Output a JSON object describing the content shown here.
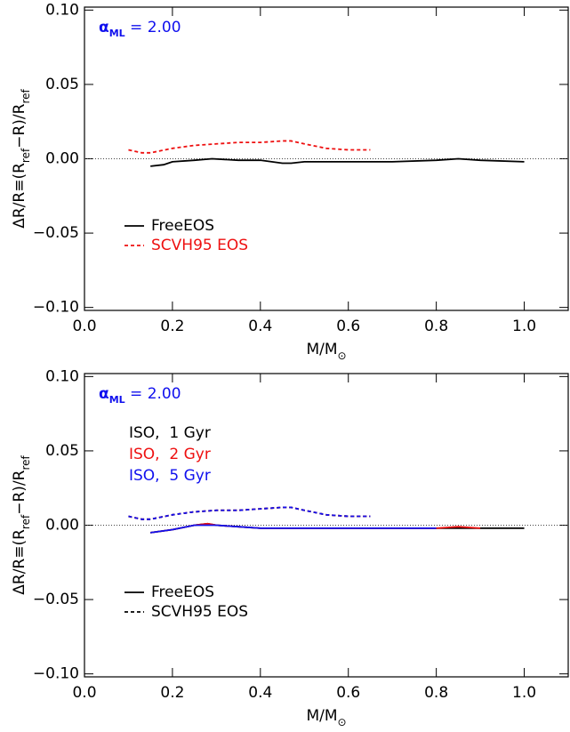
{
  "chart_data": [
    {
      "type": "line",
      "annotation": {
        "symbol": "α",
        "subscript": "ML",
        "text": " = 2.00",
        "color": "#1010ee"
      },
      "x_label": [
        {
          "text": "M/M"
        },
        {
          "text": "⊙",
          "sub": true
        }
      ],
      "y_label": [
        {
          "text": "ΔR/R≡(R"
        },
        {
          "text": "ref",
          "sub": true
        },
        {
          "text": "−R)/R"
        },
        {
          "text": "ref",
          "sub": true
        }
      ],
      "xlim": [
        0,
        1.1
      ],
      "ylim": [
        -0.102,
        0.102
      ],
      "xticks": [
        {
          "value": 0,
          "label": "0.0"
        },
        {
          "value": 0.2,
          "label": "0.2"
        },
        {
          "value": 0.4,
          "label": "0.4"
        },
        {
          "value": 0.6,
          "label": "0.6"
        },
        {
          "value": 0.8,
          "label": "0.8"
        },
        {
          "value": 1,
          "label": "1.0"
        }
      ],
      "yticks": [
        {
          "value": -0.1,
          "label": "−0.10"
        },
        {
          "value": -0.05,
          "label": "−0.05"
        },
        {
          "value": 0,
          "label": "0.00"
        },
        {
          "value": 0.05,
          "label": "0.05"
        },
        {
          "value": 0.1,
          "label": "0.10"
        }
      ],
      "zero_line": true,
      "legend": [
        {
          "name": "FreeEOS",
          "color": "#000000",
          "dashed": false
        },
        {
          "name": "SCVH95 EOS",
          "color": "#ee1010",
          "dashed": true
        }
      ],
      "series": [
        {
          "legend": 0,
          "x": [
            0.15,
            0.18,
            0.2,
            0.25,
            0.29,
            0.35,
            0.4,
            0.45,
            0.47,
            0.5,
            0.6,
            0.7,
            0.8,
            0.85,
            0.9,
            1.0
          ],
          "values": [
            -0.005,
            -0.004,
            -0.002,
            -0.001,
            0.0,
            -0.001,
            -0.001,
            -0.003,
            -0.003,
            -0.002,
            -0.002,
            -0.002,
            -0.001,
            0.0,
            -0.001,
            -0.002
          ]
        },
        {
          "legend": 1,
          "x": [
            0.1,
            0.13,
            0.15,
            0.2,
            0.25,
            0.3,
            0.35,
            0.4,
            0.45,
            0.47,
            0.5,
            0.55,
            0.6,
            0.65
          ],
          "values": [
            0.006,
            0.004,
            0.004,
            0.007,
            0.009,
            0.01,
            0.011,
            0.011,
            0.012,
            0.012,
            0.01,
            0.007,
            0.006,
            0.006
          ]
        }
      ]
    },
    {
      "type": "line",
      "annotation": {
        "symbol": "α",
        "subscript": "ML",
        "text": " = 2.00",
        "color": "#1010ee"
      },
      "x_label": [
        {
          "text": "M/M"
        },
        {
          "text": "⊙",
          "sub": true
        }
      ],
      "y_label": [
        {
          "text": "ΔR/R≡(R"
        },
        {
          "text": "ref",
          "sub": true
        },
        {
          "text": "−R)/R"
        },
        {
          "text": "ref",
          "sub": true
        }
      ],
      "xlim": [
        0,
        1.1
      ],
      "ylim": [
        -0.102,
        0.102
      ],
      "xticks": [
        {
          "value": 0,
          "label": "0.0"
        },
        {
          "value": 0.2,
          "label": "0.2"
        },
        {
          "value": 0.4,
          "label": "0.4"
        },
        {
          "value": 0.6,
          "label": "0.6"
        },
        {
          "value": 0.8,
          "label": "0.8"
        },
        {
          "value": 1,
          "label": "1.0"
        }
      ],
      "yticks": [
        {
          "value": -0.1,
          "label": "−0.10"
        },
        {
          "value": -0.05,
          "label": "−0.05"
        },
        {
          "value": 0,
          "label": "0.00"
        },
        {
          "value": 0.05,
          "label": "0.05"
        },
        {
          "value": 0.1,
          "label": "0.10"
        }
      ],
      "zero_line": true,
      "legend": [
        {
          "name": "FreeEOS",
          "color": "#000000",
          "dashed": false
        },
        {
          "name": "SCVH95 EOS",
          "color": "#000000",
          "dashed": true
        }
      ],
      "age_legend": [
        {
          "name": "ISO,  1 Gyr",
          "color": "#000000"
        },
        {
          "name": "ISO,  2 Gyr",
          "color": "#ee1010"
        },
        {
          "name": "ISO,  5 Gyr",
          "color": "#1010ee"
        }
      ],
      "series": [
        {
          "legend": 0,
          "age": 0,
          "x": [
            0.15,
            0.2,
            0.25,
            0.28,
            0.3,
            0.35,
            0.4,
            0.5,
            0.6,
            0.7,
            0.8,
            0.9,
            1.0
          ],
          "values": [
            -0.005,
            -0.003,
            0.0,
            0.001,
            0.0,
            -0.001,
            -0.002,
            -0.002,
            -0.002,
            -0.002,
            -0.002,
            -0.002,
            -0.002
          ]
        },
        {
          "legend": 0,
          "age": 1,
          "x": [
            0.15,
            0.2,
            0.25,
            0.28,
            0.3,
            0.35,
            0.4,
            0.5,
            0.6,
            0.7,
            0.8,
            0.85,
            0.9
          ],
          "values": [
            -0.005,
            -0.003,
            0.0,
            0.001,
            0.0,
            -0.001,
            -0.002,
            -0.002,
            -0.002,
            -0.002,
            -0.002,
            -0.001,
            -0.002
          ]
        },
        {
          "legend": 0,
          "age": 2,
          "x": [
            0.15,
            0.2,
            0.25,
            0.28,
            0.3,
            0.35,
            0.4,
            0.5,
            0.6,
            0.7,
            0.8
          ],
          "values": [
            -0.005,
            -0.003,
            0.0,
            0.0,
            0.0,
            -0.001,
            -0.002,
            -0.002,
            -0.002,
            -0.002,
            -0.002
          ]
        },
        {
          "legend": 1,
          "age": 0,
          "x": [
            0.1,
            0.13,
            0.15,
            0.2,
            0.25,
            0.3,
            0.35,
            0.4,
            0.45,
            0.47,
            0.5,
            0.55,
            0.6,
            0.65
          ],
          "values": [
            0.006,
            0.004,
            0.004,
            0.007,
            0.009,
            0.01,
            0.01,
            0.011,
            0.012,
            0.012,
            0.01,
            0.007,
            0.006,
            0.006
          ]
        },
        {
          "legend": 1,
          "age": 1,
          "x": [
            0.1,
            0.13,
            0.15,
            0.2,
            0.25,
            0.3,
            0.35,
            0.4,
            0.45,
            0.47,
            0.5,
            0.55,
            0.6,
            0.65
          ],
          "values": [
            0.006,
            0.004,
            0.004,
            0.007,
            0.009,
            0.01,
            0.01,
            0.011,
            0.012,
            0.012,
            0.01,
            0.007,
            0.006,
            0.006
          ]
        },
        {
          "legend": 1,
          "age": 2,
          "x": [
            0.1,
            0.13,
            0.15,
            0.2,
            0.25,
            0.3,
            0.35,
            0.4,
            0.45,
            0.47,
            0.5,
            0.55,
            0.6,
            0.65
          ],
          "values": [
            0.006,
            0.004,
            0.004,
            0.007,
            0.009,
            0.01,
            0.01,
            0.011,
            0.012,
            0.012,
            0.01,
            0.007,
            0.006,
            0.006
          ]
        }
      ]
    }
  ]
}
